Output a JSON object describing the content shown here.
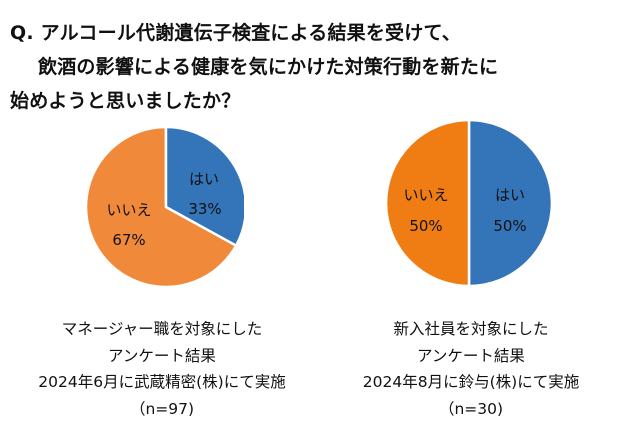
{
  "question": {
    "line1": "Q. アルコール代謝遺伝子検査による結果を受けて、",
    "line2": "飲酒の影響による健康を気にかけた対策行動を新たに",
    "line3": "始めようと思いましたか？"
  },
  "captions": [
    {
      "line1": "マネージャー職を対象にした",
      "line2": "アンケート結果",
      "line3": "2024年6月に武蔵精密(株)にて実施",
      "line4": "（n=97)"
    },
    {
      "line1": "新入社員を対象にした",
      "line2": "アンケート結果",
      "line3": "2024年8月に鈴与(株)にて実施",
      "line4": "（n=30)"
    }
  ],
  "colors": {
    "yes": "#3474B8",
    "no": "#F08A3A",
    "no_alt": "#EF7D14",
    "border": "#ffffff"
  },
  "chart_data": [
    {
      "type": "pie",
      "labels": [
        "はい",
        "いいえ"
      ],
      "values": [
        33,
        67
      ],
      "value_labels": [
        "33%",
        "67%"
      ],
      "colors": [
        "#3474B8",
        "#F08A3A"
      ],
      "start": "12 o'clock",
      "direction": "clockwise"
    },
    {
      "type": "pie",
      "labels": [
        "はい",
        "いいえ"
      ],
      "values": [
        50,
        50
      ],
      "value_labels": [
        "50%",
        "50%"
      ],
      "colors": [
        "#3474B8",
        "#EF7D14"
      ],
      "start": "12 o'clock",
      "direction": "clockwise"
    }
  ]
}
